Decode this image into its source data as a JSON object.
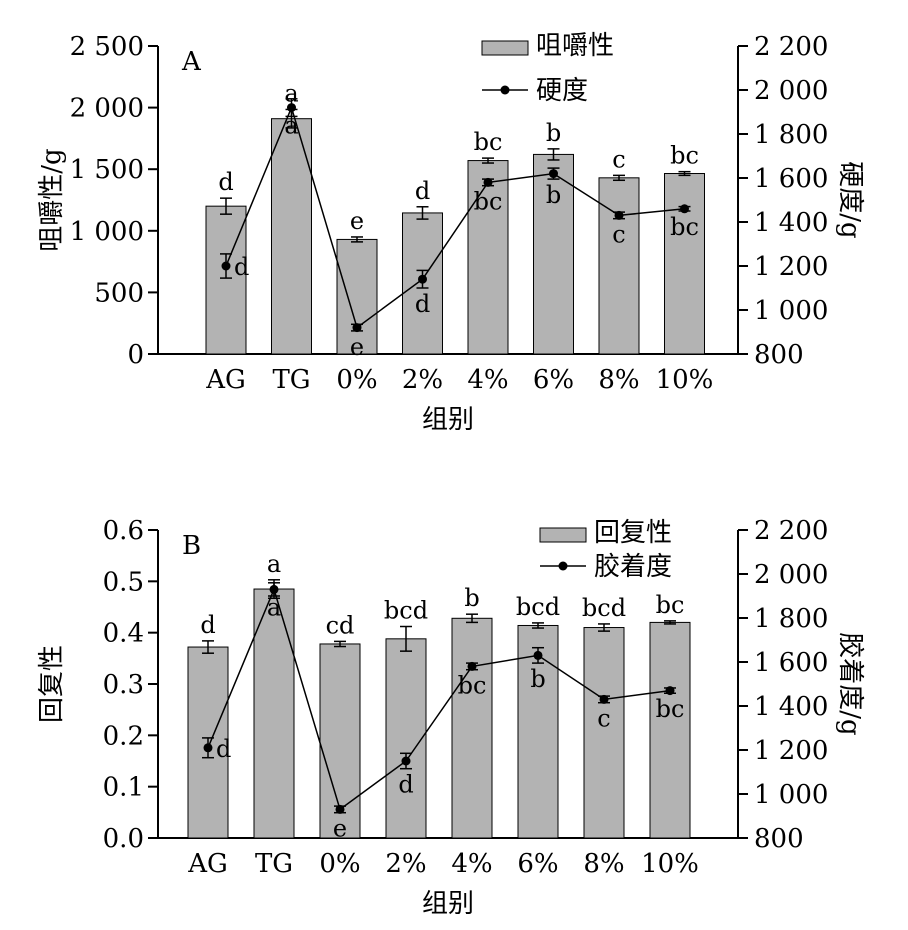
{
  "chart_data": [
    {
      "type": "bar",
      "panel_label": "A",
      "categories": [
        "AG",
        "TG",
        "0%",
        "2%",
        "4%",
        "6%",
        "8%",
        "10%"
      ],
      "xlabel": "组别",
      "ylabel": "咀嚼性/g",
      "ylabel_right": "硬度/g",
      "ylim": [
        0,
        2500
      ],
      "y2lim": [
        800,
        2200
      ],
      "yticks": [
        "0",
        "500",
        "1 000",
        "1 500",
        "2 000",
        "2 500"
      ],
      "y2ticks": [
        "800",
        "1 000",
        "1 200",
        "1 400",
        "1 600",
        "1 800",
        "2 000",
        "2 200"
      ],
      "legend_position": "top-center",
      "grid": false,
      "series": [
        {
          "name": "咀嚼性",
          "kind": "bar",
          "axis": "left",
          "color": "#b3b3b3",
          "values": [
            1200,
            1910,
            930,
            1145,
            1570,
            1620,
            1430,
            1465
          ],
          "errors": [
            65,
            75,
            20,
            50,
            20,
            45,
            20,
            15
          ],
          "letters": [
            "d",
            "a",
            "e",
            "d",
            "bc",
            "b",
            "c",
            "bc"
          ]
        },
        {
          "name": "硬度",
          "kind": "line",
          "axis": "right",
          "color": "#000000",
          "values": [
            1200,
            1920,
            920,
            1140,
            1580,
            1620,
            1430,
            1460
          ],
          "errors": [
            55,
            40,
            15,
            40,
            15,
            25,
            15,
            10
          ],
          "letters": [
            "d",
            "a",
            "e",
            "d",
            "bc",
            "b",
            "c",
            "bc"
          ]
        }
      ]
    },
    {
      "type": "bar",
      "panel_label": "B",
      "categories": [
        "AG",
        "TG",
        "0%",
        "2%",
        "4%",
        "6%",
        "8%",
        "10%"
      ],
      "xlabel": "组别",
      "ylabel": "回复性",
      "ylabel_right": "胶着度/g",
      "ylim": [
        0,
        0.6
      ],
      "y2lim": [
        800,
        2200
      ],
      "yticks": [
        "0.0",
        "0.1",
        "0.2",
        "0.3",
        "0.4",
        "0.5",
        "0.6"
      ],
      "y2ticks": [
        "800",
        "1 000",
        "1 200",
        "1 400",
        "1 600",
        "1 800",
        "2 000",
        "2 200"
      ],
      "legend_position": "top-right",
      "grid": false,
      "series": [
        {
          "name": "回复性",
          "kind": "bar",
          "axis": "left",
          "color": "#b3b3b3",
          "values": [
            0.372,
            0.485,
            0.378,
            0.388,
            0.428,
            0.414,
            0.41,
            0.42
          ],
          "errors": [
            0.012,
            0.018,
            0.005,
            0.024,
            0.008,
            0.005,
            0.007,
            0.003
          ],
          "letters": [
            "d",
            "a",
            "cd",
            "bcd",
            "b",
            "bcd",
            "bcd",
            "bc"
          ]
        },
        {
          "name": "胶着度",
          "kind": "line",
          "axis": "right",
          "color": "#000000",
          "values": [
            1210,
            1930,
            930,
            1150,
            1580,
            1630,
            1430,
            1470
          ],
          "errors": [
            45,
            30,
            15,
            35,
            15,
            35,
            15,
            12
          ],
          "letters": [
            "d",
            "a",
            "e",
            "d",
            "bc",
            "b",
            "c",
            "bc"
          ]
        }
      ]
    }
  ]
}
